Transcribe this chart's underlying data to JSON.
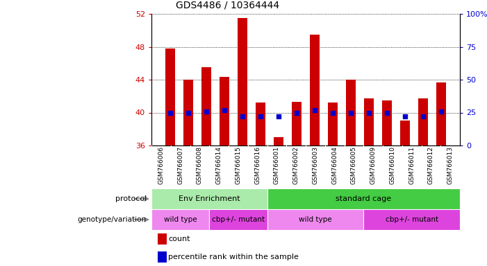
{
  "title": "GDS4486 / 10364444",
  "samples": [
    "GSM766006",
    "GSM766007",
    "GSM766008",
    "GSM766014",
    "GSM766015",
    "GSM766016",
    "GSM766001",
    "GSM766002",
    "GSM766003",
    "GSM766004",
    "GSM766005",
    "GSM766009",
    "GSM766010",
    "GSM766011",
    "GSM766012",
    "GSM766013"
  ],
  "counts": [
    47.8,
    44.0,
    45.5,
    44.3,
    51.5,
    41.2,
    37.0,
    41.3,
    49.5,
    41.2,
    44.0,
    41.7,
    41.5,
    39.0,
    41.7,
    43.7
  ],
  "percentile_ranks_right": [
    25.0,
    25.0,
    26.0,
    27.0,
    22.0,
    22.0,
    22.0,
    25.0,
    27.0,
    25.0,
    25.0,
    25.0,
    25.0,
    22.0,
    22.0,
    26.0
  ],
  "ylim_left": [
    36,
    52
  ],
  "ylim_right": [
    0,
    100
  ],
  "yticks_left": [
    36,
    40,
    44,
    48,
    52
  ],
  "yticks_right": [
    0,
    25,
    50,
    75,
    100
  ],
  "bar_color": "#cc0000",
  "dot_color": "#0000cc",
  "bar_width": 0.55,
  "protocol_groups": [
    {
      "label": "Env Enrichment",
      "start": 0,
      "end": 6,
      "color": "#aaeaaa"
    },
    {
      "label": "standard cage",
      "start": 6,
      "end": 16,
      "color": "#44cc44"
    }
  ],
  "genotype_groups": [
    {
      "label": "wild type",
      "start": 0,
      "end": 3,
      "color": "#ee88ee"
    },
    {
      "label": "cbp+/- mutant",
      "start": 3,
      "end": 6,
      "color": "#dd44dd"
    },
    {
      "label": "wild type",
      "start": 6,
      "end": 11,
      "color": "#ee88ee"
    },
    {
      "label": "cbp+/- mutant",
      "start": 11,
      "end": 16,
      "color": "#dd44dd"
    }
  ],
  "legend_count_color": "#cc0000",
  "legend_pct_color": "#0000cc",
  "left_label_color": "#333333",
  "xlabel_color": "#cc0000",
  "ylabel_right_color": "#0000cc",
  "tick_label_area_color": "#d8d8d8",
  "grid_color": "#000000",
  "left_labels": [
    "protocol",
    "genotype/variation"
  ]
}
